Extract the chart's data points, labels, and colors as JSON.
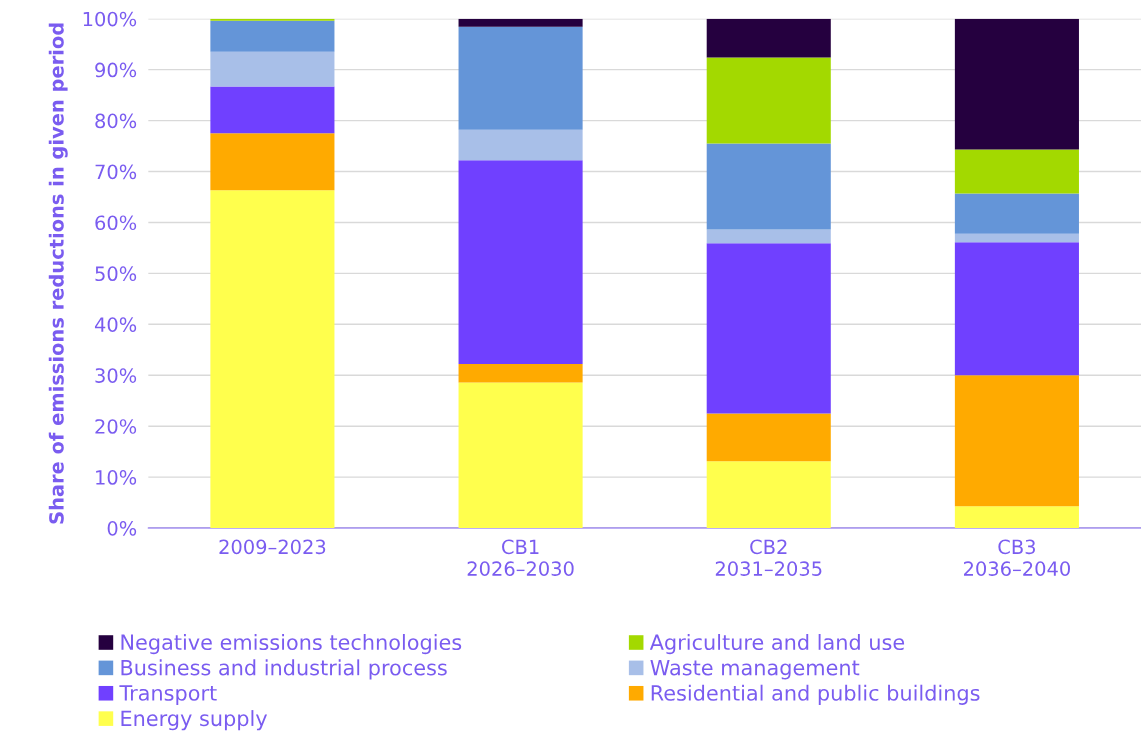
{
  "chart_data": {
    "type": "bar",
    "stacked": true,
    "ylabel": "Share of emissions reductions in given period",
    "categories": [
      "2009–2023",
      "CB1\n2026–2030",
      "CB2\n2031–2035",
      "CB3\n2036–2040"
    ],
    "series": [
      {
        "name": "Energy supply",
        "color": "#ffff4d",
        "values": [
          66.3,
          28.6,
          13.1,
          4.3
        ]
      },
      {
        "name": "Residential and public buildings",
        "color": "#ffaa00",
        "values": [
          11.2,
          3.6,
          9.4,
          25.7
        ]
      },
      {
        "name": "Transport",
        "color": "#7040ff",
        "values": [
          9.2,
          40.0,
          33.4,
          26.1
        ]
      },
      {
        "name": "Waste management",
        "color": "#a8bfe8",
        "values": [
          6.8,
          6.0,
          2.7,
          1.7
        ]
      },
      {
        "name": "Business and industrial process",
        "color": "#6495d8",
        "values": [
          6.1,
          20.2,
          16.9,
          7.9
        ]
      },
      {
        "name": "Agriculture and land use",
        "color": "#a3d900",
        "values": [
          0.4,
          0.0,
          16.9,
          8.6
        ]
      },
      {
        "name": "Negative emissions technologies",
        "color": "#25003f",
        "values": [
          0.0,
          1.6,
          7.6,
          25.7
        ]
      }
    ],
    "ylim": [
      0,
      100
    ],
    "yticks": [
      {
        "value": 0,
        "label": "0%"
      },
      {
        "value": 10,
        "label": "10%"
      },
      {
        "value": 20,
        "label": "20%"
      },
      {
        "value": 30,
        "label": "30%"
      },
      {
        "value": 40,
        "label": "40%"
      },
      {
        "value": 50,
        "label": "50%"
      },
      {
        "value": 60,
        "label": "60%"
      },
      {
        "value": 70,
        "label": "70%"
      },
      {
        "value": 80,
        "label": "80%"
      },
      {
        "value": 90,
        "label": "90%"
      },
      {
        "value": 100,
        "label": "100%"
      }
    ],
    "grid": "y",
    "legend": "bottom"
  }
}
